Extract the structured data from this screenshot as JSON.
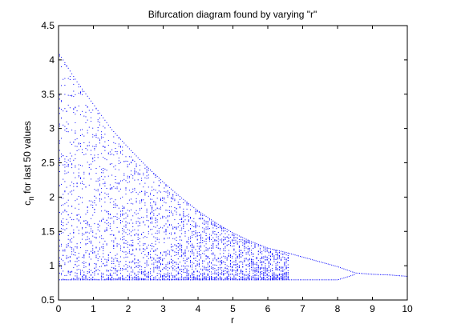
{
  "chart_data": {
    "type": "scatter",
    "title": "Bifurcation diagram found by varying \"r\"",
    "xlabel": "r",
    "ylabel_main": "c",
    "ylabel_sub": "n",
    "ylabel_rest": " for last 50 values",
    "xlim": [
      0,
      10
    ],
    "ylim": [
      0.5,
      4.5
    ],
    "x_ticks": [
      "0",
      "1",
      "2",
      "3",
      "4",
      "5",
      "6",
      "7",
      "8",
      "9",
      "10"
    ],
    "y_ticks": [
      "0.5",
      "1",
      "1.5",
      "2",
      "2.5",
      "3",
      "3.5",
      "4",
      "4.5"
    ],
    "grid": false,
    "marker_color": "#0000ff",
    "envelope": {
      "description_points_r": [
        0,
        0.5,
        1,
        1.5,
        2,
        2.5,
        3,
        3.5,
        4,
        4.5,
        5,
        5.5,
        6,
        6.5,
        7,
        7.5,
        8,
        8.5,
        9,
        9.5,
        10
      ],
      "upper": [
        4.1,
        3.7,
        3.35,
        3.0,
        2.72,
        2.46,
        2.22,
        2.0,
        1.8,
        1.63,
        1.48,
        1.36,
        1.26,
        1.2,
        1.13,
        1.06,
        0.99,
        0.9,
        0.88,
        0.87,
        0.85
      ],
      "lower": [
        0.8,
        0.8,
        0.8,
        0.8,
        0.8,
        0.8,
        0.8,
        0.8,
        0.8,
        0.8,
        0.8,
        0.8,
        0.8,
        0.8,
        0.8,
        0.8,
        0.8,
        0.88,
        0.88,
        0.87,
        0.85
      ]
    }
  }
}
